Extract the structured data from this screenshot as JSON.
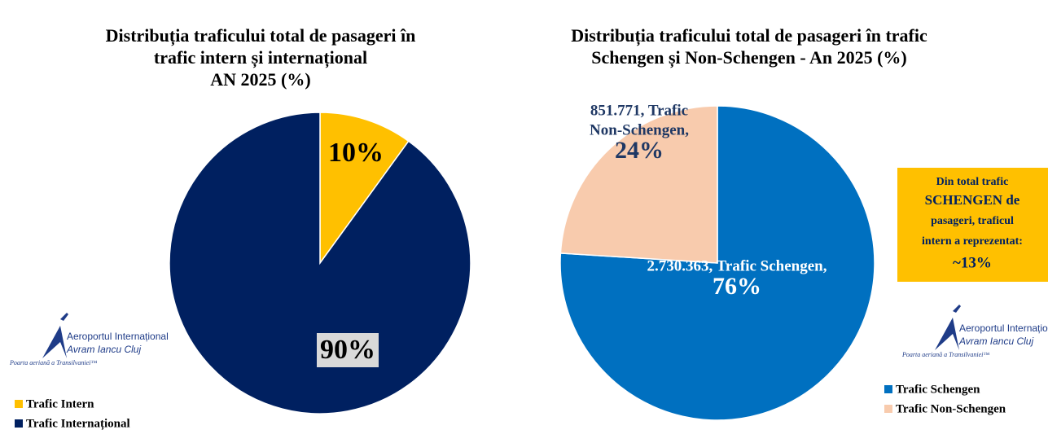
{
  "chart_data": [
    {
      "type": "pie",
      "title": [
        "Distribuția traficului total de pasageri în",
        "trafic intern și internațional",
        "AN 2025 (%)"
      ],
      "categories": [
        "Trafic Intern",
        "Trafic Internațional"
      ],
      "values": [
        10,
        90
      ],
      "value_labels": [
        "10%",
        "90%"
      ],
      "colors": [
        "#FFC000",
        "#002060"
      ],
      "legend": "bottom-left"
    },
    {
      "type": "pie",
      "title": [
        "Distribuția traficului total de pasageri în trafic",
        "Schengen și Non-Schengen - An 2025 (%)"
      ],
      "categories": [
        "Trafic Schengen",
        "Trafic Non-Schengen"
      ],
      "values": [
        76,
        24
      ],
      "value_labels": [
        "76%",
        "24%"
      ],
      "label_texts": [
        [
          "2.730.363, Trafic Schengen,"
        ],
        [
          "851.771, Trafic",
          "Non-Schengen,"
        ]
      ],
      "colors": [
        "#0070C0",
        "#F8CBAD"
      ],
      "legend": "bottom-right"
    }
  ],
  "annotation": [
    "Din total trafic",
    "SCHENGEN de",
    "pasageri, traficul",
    "intern a reprezentat:",
    "~13%"
  ],
  "logo": {
    "name": "Aeroportul Internațional",
    "city": "Avram Iancu Cluj",
    "tagline": "Poarta aeriană a Transilvaniei™"
  }
}
